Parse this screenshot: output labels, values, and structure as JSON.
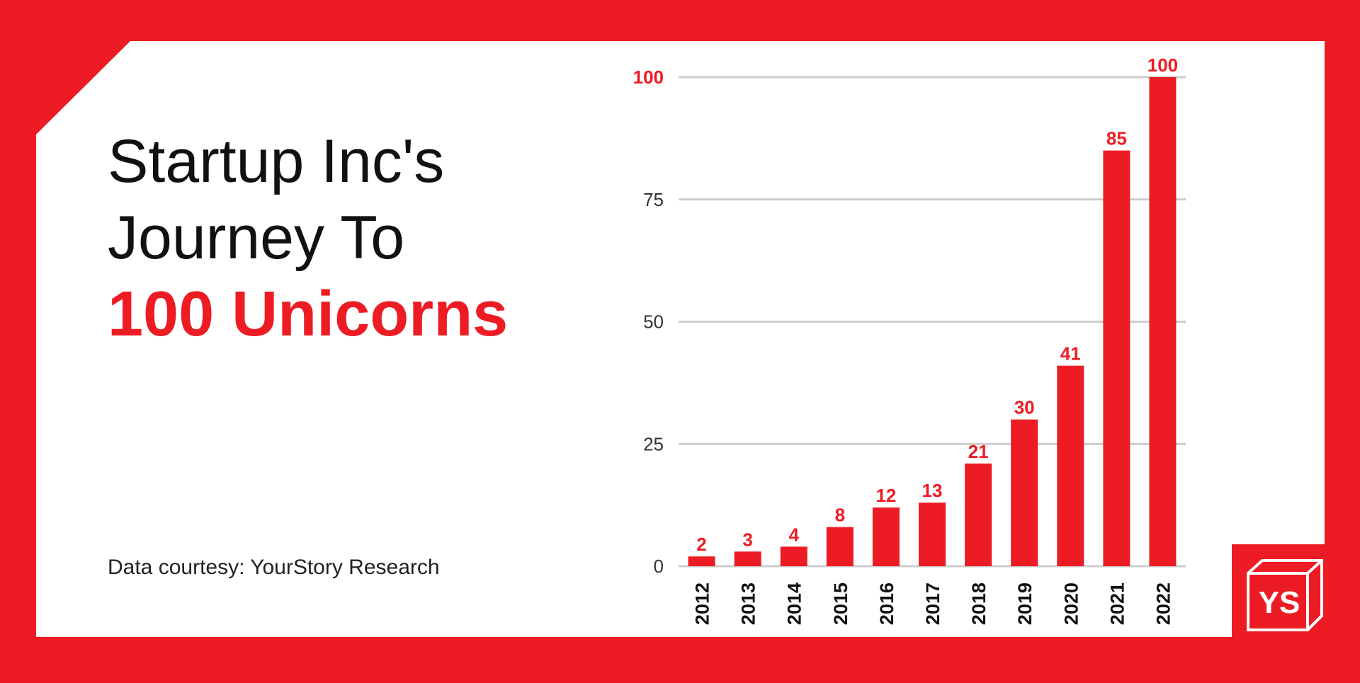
{
  "chart_data": {
    "type": "bar",
    "title": "Startup Inc's Journey To",
    "title_highlight": "100 Unicorns",
    "source": "Data courtesy: YourStory Research",
    "logo": "YS",
    "categories": [
      "2012",
      "2013",
      "2014",
      "2015",
      "2016",
      "2017",
      "2018",
      "2019",
      "2020",
      "2021",
      "2022"
    ],
    "values": [
      2,
      3,
      4,
      8,
      12,
      13,
      21,
      30,
      41,
      85,
      100
    ],
    "color": "#ed1c24",
    "ylim": [
      0,
      100
    ],
    "yticks": [
      0,
      25,
      50,
      75,
      100
    ],
    "grid": true
  }
}
